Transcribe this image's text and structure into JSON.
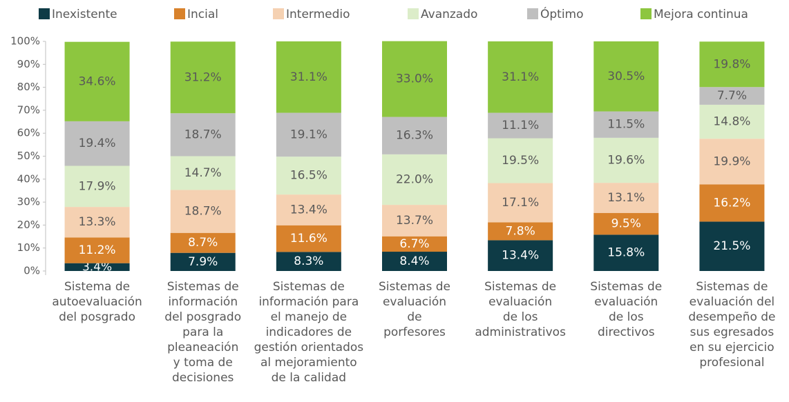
{
  "chart_data": {
    "type": "stacked_bar",
    "categories": [
      [
        "Sistema de",
        "autoevaluación",
        "del posgrado"
      ],
      [
        "Sistemas de",
        "información",
        "del posgrado",
        "para la",
        "pleaneación",
        "y toma de",
        "decisiones"
      ],
      [
        "Sistemas de",
        "información para",
        "el manejo de",
        "indicadores de",
        "gestión orientados",
        "al mejoramiento",
        "de la calidad"
      ],
      [
        "Sistemas de",
        "evaluación",
        "de",
        "porfesores"
      ],
      [
        "Sistemas de",
        "evaluación",
        "de los",
        "administrativos"
      ],
      [
        "Sistemas de",
        "evaluación",
        "de los",
        "directivos"
      ],
      [
        "Sistemas de",
        "evaluación del",
        "desempeño de",
        "sus egresados",
        "en su ejercicio",
        "profesional"
      ]
    ],
    "series": [
      {
        "name": "Inexistente",
        "color": "#0e3b46",
        "values": [
          3.4,
          7.9,
          8.3,
          8.4,
          13.4,
          15.8,
          21.5
        ],
        "value_labels": [
          "3.4%",
          "7.9%",
          "8.3%",
          "8.4%",
          "13.4%",
          "15.8%",
          "21.5%"
        ]
      },
      {
        "name": "Incial",
        "color": "#d8822c",
        "values": [
          11.2,
          8.7,
          11.6,
          6.7,
          7.8,
          9.5,
          16.2
        ],
        "value_labels": [
          "11.2%",
          "8.7%",
          "11.6%",
          "6.7%",
          "7.8%",
          "9.5%",
          "16.2%"
        ]
      },
      {
        "name": "Intermedio",
        "color": "#f5d1b2",
        "values": [
          13.3,
          18.7,
          13.4,
          13.7,
          17.1,
          13.1,
          19.9
        ],
        "value_labels": [
          "13.3%",
          "18.7%",
          "13.4%",
          "13.7%",
          "17.1%",
          "13.1%",
          "19.9%"
        ]
      },
      {
        "name": "Avanzado",
        "color": "#dcedc9",
        "values": [
          17.9,
          14.7,
          16.5,
          22.0,
          19.5,
          19.6,
          14.8
        ],
        "value_labels": [
          "17.9%",
          "14.7%",
          "16.5%",
          "22.0%",
          "19.5%",
          "19.6%",
          "14.8%"
        ]
      },
      {
        "name": "Óptimo",
        "color": "#bfbfbf",
        "values": [
          19.4,
          18.7,
          19.1,
          16.3,
          11.1,
          11.5,
          7.7
        ],
        "value_labels": [
          "19.4%",
          "18.7%",
          "19.1%",
          "16.3%",
          "11.1%",
          "11.5%",
          "7.7%"
        ]
      },
      {
        "name": "Mejora continua",
        "color": "#8dc63f",
        "values": [
          34.6,
          31.2,
          31.1,
          33.0,
          31.1,
          30.5,
          19.8
        ],
        "value_labels": [
          "34.6%",
          "31.2%",
          "31.1%",
          "33.0%",
          "31.1%",
          "30.5%",
          "19.8%"
        ]
      }
    ],
    "ylim": [
      0,
      100
    ],
    "yticks": [
      {
        "value": 0,
        "label": "0%"
      },
      {
        "value": 10,
        "label": "10%"
      },
      {
        "value": 20,
        "label": "20%"
      },
      {
        "value": 30,
        "label": "30%"
      },
      {
        "value": 40,
        "label": "40%"
      },
      {
        "value": 50,
        "label": "50%"
      },
      {
        "value": 60,
        "label": "60%"
      },
      {
        "value": 70,
        "label": "70%"
      },
      {
        "value": 80,
        "label": "80%"
      },
      {
        "value": 90,
        "label": "90%"
      },
      {
        "value": 100,
        "label": "100%"
      }
    ],
    "legend": "top"
  }
}
